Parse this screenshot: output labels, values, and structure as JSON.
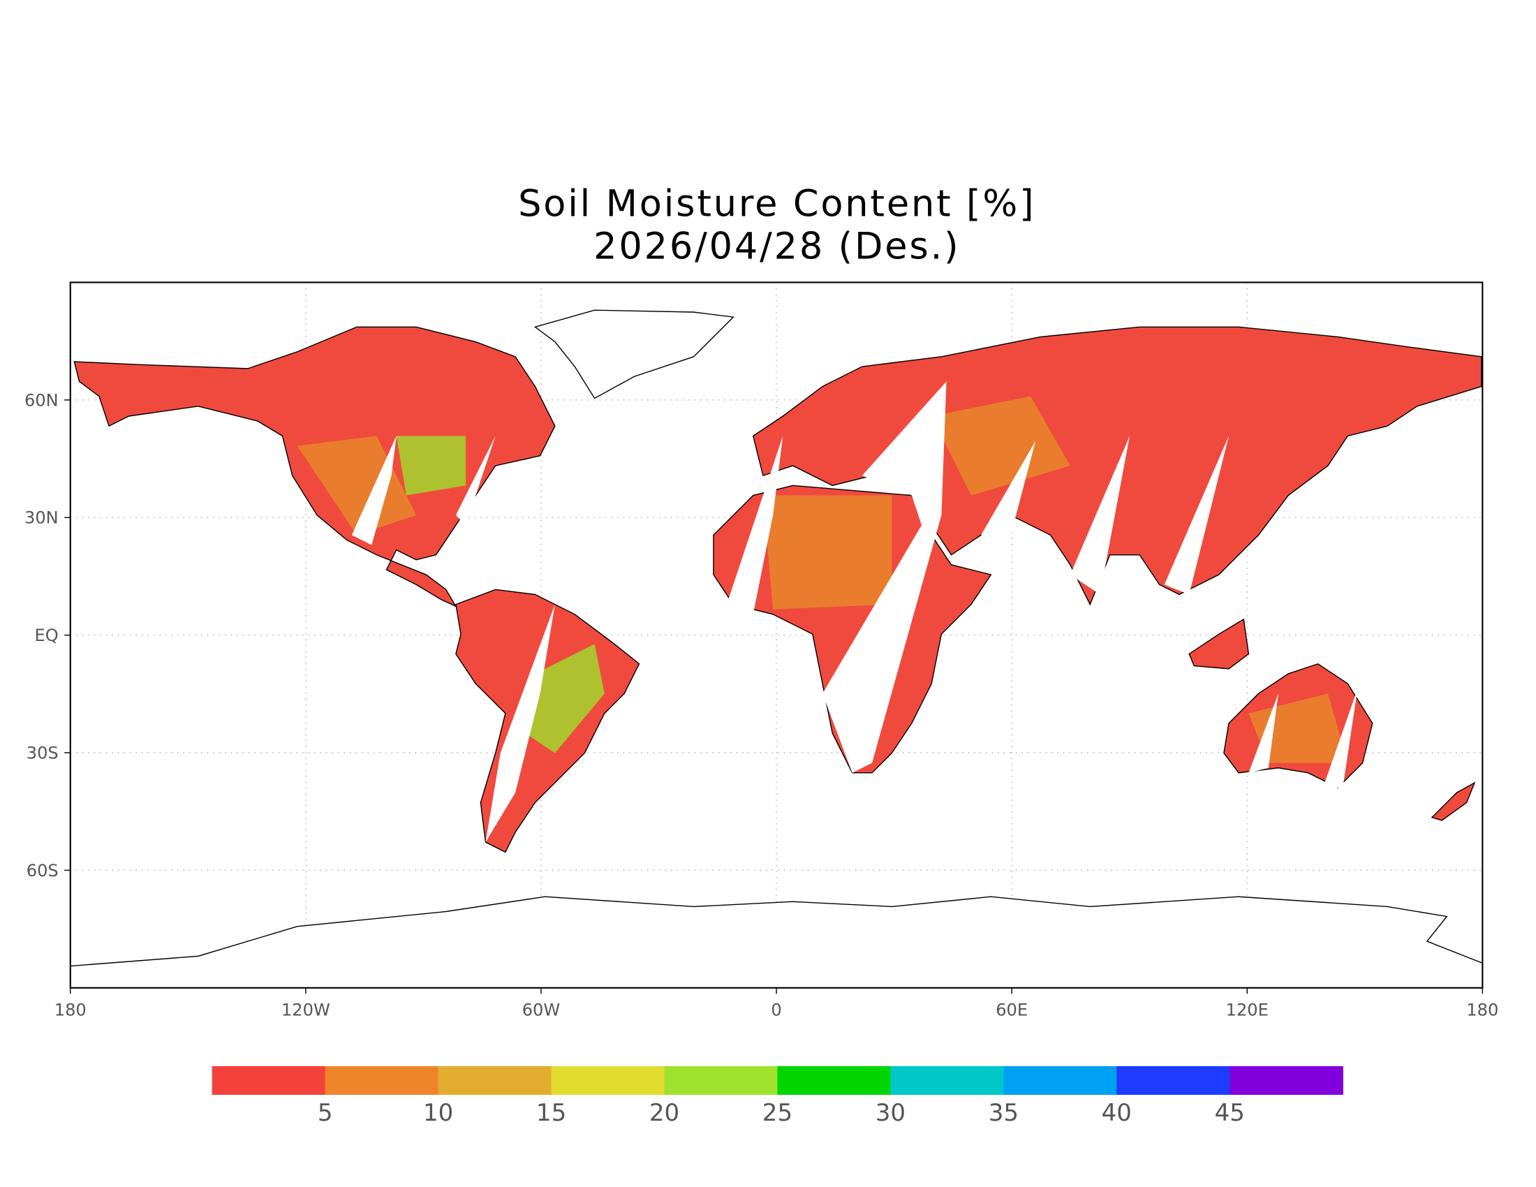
{
  "map": {
    "title": "Soil Moisture Content [%]",
    "subtitle": "2026/04/28 (Des.)",
    "xlim": [
      -180,
      180
    ],
    "ylim": [
      -90,
      90
    ],
    "xticks": [
      {
        "value": -180,
        "label": "180"
      },
      {
        "value": -120,
        "label": "120W"
      },
      {
        "value": -60,
        "label": "60W"
      },
      0,
      {
        "value": 60,
        "label": "60E"
      },
      {
        "value": 120,
        "label": "120E"
      },
      {
        "value": 180,
        "label": "180"
      }
    ],
    "yticks": [
      {
        "value": 60,
        "label": "60N"
      },
      {
        "value": 30,
        "label": "30N"
      },
      {
        "value": 0,
        "label": "EQ"
      },
      {
        "value": -30,
        "label": "30S"
      },
      {
        "value": -60,
        "label": "60S"
      }
    ],
    "grid": true,
    "colorbar": {
      "levels": [
        5,
        10,
        15,
        20,
        25,
        30,
        35,
        40,
        45
      ],
      "colors": [
        "#f5413c",
        "#ef852a",
        "#e3ad2f",
        "#e2dc2e",
        "#9fe22e",
        "#00d500",
        "#00c8c8",
        "#00a0f5",
        "#1e3cff",
        "#8200dc"
      ]
    }
  }
}
